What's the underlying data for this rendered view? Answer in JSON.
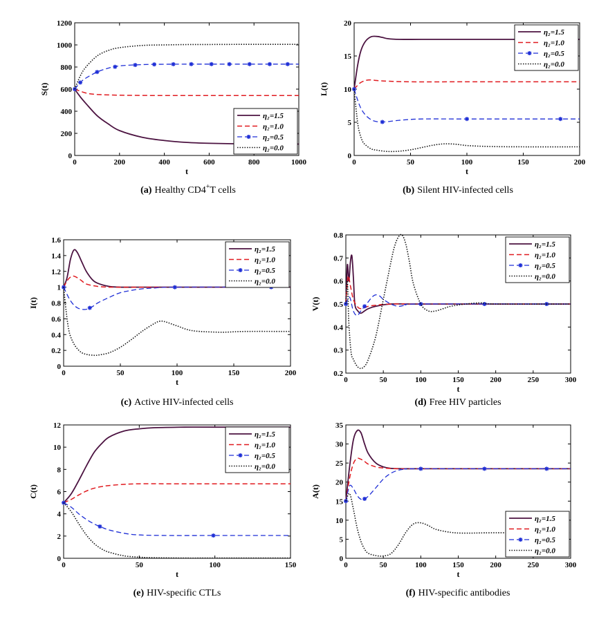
{
  "legend_labels": [
    "η₂=1.5",
    "η₂=1.0",
    "η₂=0.5",
    "η₂=0.0"
  ],
  "colors": {
    "s15": "#4b1240",
    "s10": "#e0191e",
    "s05": "#1f2fd6",
    "s00": "#111111"
  },
  "chart_data": [
    {
      "id": "a",
      "type": "line",
      "caption_label": "(a)",
      "caption_text": "Healthy CD4",
      "caption_sup": "+",
      "caption_tail": "T cells",
      "xlabel": "t",
      "ylabel": "S(t)",
      "xlim": [
        0,
        1000
      ],
      "ylim": [
        0,
        1200
      ],
      "xticks": [
        0,
        200,
        400,
        600,
        800,
        1000
      ],
      "yticks": [
        0,
        200,
        400,
        600,
        800,
        1000,
        1200
      ],
      "legend": "bottom-right",
      "series": [
        {
          "name": "η₂=1.5",
          "x": [
            0,
            25,
            50,
            100,
            150,
            200,
            300,
            400,
            500,
            600,
            700,
            800,
            900,
            1000
          ],
          "values": [
            600,
            530,
            470,
            360,
            285,
            225,
            165,
            135,
            118,
            110,
            106,
            104,
            103,
            103
          ]
        },
        {
          "name": "η₂=1.0",
          "x": [
            0,
            50,
            100,
            200,
            300,
            400,
            600,
            800,
            1000
          ],
          "values": [
            600,
            565,
            552,
            545,
            543,
            542,
            542,
            542,
            542
          ]
        },
        {
          "name": "η₂=0.5",
          "x": [
            0,
            25,
            50,
            100,
            150,
            200,
            300,
            400,
            500,
            600,
            800,
            1000
          ],
          "values": [
            600,
            660,
            700,
            755,
            790,
            810,
            822,
            825,
            826,
            826,
            826,
            826
          ],
          "markers_x": [
            0,
            25,
            100,
            180,
            270,
            355,
            440,
            520,
            610,
            690,
            780,
            870,
            950
          ]
        },
        {
          "name": "η₂=0.0",
          "x": [
            0,
            25,
            50,
            100,
            150,
            200,
            300,
            400,
            500,
            600,
            800,
            1000
          ],
          "values": [
            600,
            720,
            800,
            900,
            950,
            975,
            995,
            1000,
            1003,
            1004,
            1005,
            1005
          ]
        }
      ]
    },
    {
      "id": "b",
      "type": "line",
      "caption_label": "(b)",
      "caption_text": "Silent HIV-infected cells",
      "xlabel": "t",
      "ylabel": "L(t)",
      "xlim": [
        0,
        200
      ],
      "ylim": [
        0,
        20
      ],
      "xticks": [
        0,
        50,
        100,
        150,
        200
      ],
      "yticks": [
        0,
        5,
        10,
        15,
        20
      ],
      "legend": "top-right",
      "series": [
        {
          "name": "η₂=1.5",
          "x": [
            0,
            3,
            6,
            10,
            15,
            20,
            25,
            30,
            40,
            60,
            100,
            150,
            200
          ],
          "values": [
            10,
            13.5,
            15.8,
            17.2,
            17.9,
            17.95,
            17.8,
            17.6,
            17.5,
            17.5,
            17.5,
            17.5,
            17.5
          ]
        },
        {
          "name": "η₂=1.0",
          "x": [
            0,
            5,
            10,
            15,
            20,
            30,
            50,
            100,
            200
          ],
          "values": [
            10,
            10.9,
            11.3,
            11.4,
            11.3,
            11.2,
            11.1,
            11.1,
            11.1
          ]
        },
        {
          "name": "η₂=0.5",
          "x": [
            0,
            3,
            6,
            10,
            15,
            20,
            25,
            30,
            40,
            60,
            100,
            200
          ],
          "values": [
            10,
            8.4,
            7.1,
            6.1,
            5.4,
            5.1,
            5.05,
            5.1,
            5.3,
            5.5,
            5.5,
            5.5
          ],
          "markers_x": [
            0,
            25,
            100,
            183
          ]
        },
        {
          "name": "η₂=0.0",
          "x": [
            0,
            2,
            4,
            7,
            10,
            15,
            20,
            30,
            40,
            50,
            60,
            70,
            80,
            90,
            100,
            120,
            150,
            200
          ],
          "values": [
            10,
            6.5,
            4.0,
            2.3,
            1.6,
            1.0,
            0.8,
            0.6,
            0.65,
            0.85,
            1.2,
            1.55,
            1.75,
            1.7,
            1.5,
            1.35,
            1.3,
            1.3
          ]
        }
      ]
    },
    {
      "id": "c",
      "type": "line",
      "caption_label": "(c)",
      "caption_text": "Active HIV-infected cells",
      "xlabel": "t",
      "ylabel": "I(t)",
      "xlim": [
        0,
        200
      ],
      "ylim": [
        0,
        1.6
      ],
      "xticks": [
        0,
        50,
        100,
        150,
        200
      ],
      "yticks": [
        0,
        0.2,
        0.4,
        0.6,
        0.8,
        1,
        1.2,
        1.4,
        1.6
      ],
      "ytick_labels": [
        "0",
        "0.2",
        "0.4",
        "0.6",
        "0.8",
        "1",
        "1.2",
        "1.4",
        "1.6"
      ],
      "legend": "top-right",
      "series": [
        {
          "name": "η₂=1.5",
          "x": [
            0,
            3,
            6,
            9,
            12,
            16,
            20,
            25,
            30,
            40,
            50,
            70,
            100,
            200
          ],
          "values": [
            1,
            1.12,
            1.35,
            1.47,
            1.44,
            1.32,
            1.2,
            1.1,
            1.05,
            1.01,
            1.0,
            1.0,
            1.0,
            1.0
          ]
        },
        {
          "name": "η₂=1.0",
          "x": [
            0,
            4,
            8,
            12,
            16,
            20,
            30,
            40,
            50,
            100,
            200
          ],
          "values": [
            1,
            1.1,
            1.14,
            1.12,
            1.08,
            1.04,
            1.01,
            1.0,
            1.0,
            1.0,
            1.0
          ]
        },
        {
          "name": "η₂=0.5",
          "x": [
            0,
            4,
            8,
            12,
            16,
            20,
            25,
            30,
            40,
            50,
            60,
            70,
            80,
            100,
            200
          ],
          "values": [
            1,
            0.88,
            0.79,
            0.74,
            0.72,
            0.72,
            0.75,
            0.8,
            0.87,
            0.93,
            0.96,
            0.98,
            0.99,
            1.0,
            1.0
          ],
          "markers_x": [
            0,
            23,
            98,
            183
          ]
        },
        {
          "name": "η₂=0.0",
          "x": [
            0,
            2,
            4,
            6,
            10,
            15,
            20,
            25,
            30,
            40,
            50,
            60,
            70,
            80,
            85,
            90,
            100,
            110,
            120,
            140,
            160,
            200
          ],
          "values": [
            1,
            0.72,
            0.5,
            0.38,
            0.26,
            0.18,
            0.15,
            0.14,
            0.14,
            0.17,
            0.24,
            0.34,
            0.45,
            0.54,
            0.57,
            0.56,
            0.51,
            0.46,
            0.44,
            0.43,
            0.44,
            0.44
          ]
        }
      ]
    },
    {
      "id": "d",
      "type": "line",
      "caption_label": "(d)",
      "caption_text": "Free HIV particles",
      "xlabel": "t",
      "ylabel": "V(t)",
      "xlim": [
        0,
        300
      ],
      "ylim": [
        0.2,
        0.8
      ],
      "xticks": [
        0,
        50,
        100,
        150,
        200,
        250,
        300
      ],
      "yticks": [
        0.2,
        0.3,
        0.4,
        0.5,
        0.6,
        0.7,
        0.8
      ],
      "legend": "top-right",
      "series": [
        {
          "name": "η₂=1.5",
          "x": [
            0,
            2,
            4,
            6,
            8,
            10,
            12,
            16,
            20,
            25,
            30,
            40,
            60,
            100,
            300
          ],
          "values": [
            0.5,
            0.67,
            0.6,
            0.68,
            0.71,
            0.62,
            0.5,
            0.47,
            0.46,
            0.47,
            0.48,
            0.49,
            0.5,
            0.5,
            0.5
          ]
        },
        {
          "name": "η₂=1.0",
          "x": [
            0,
            3,
            6,
            10,
            15,
            20,
            30,
            40,
            60,
            100,
            300
          ],
          "values": [
            0.5,
            0.62,
            0.58,
            0.52,
            0.49,
            0.48,
            0.49,
            0.495,
            0.5,
            0.5,
            0.5
          ]
        },
        {
          "name": "η₂=0.5",
          "x": [
            0,
            5,
            10,
            15,
            20,
            25,
            30,
            35,
            40,
            45,
            50,
            60,
            70,
            80,
            100,
            300
          ],
          "values": [
            0.5,
            0.53,
            0.47,
            0.45,
            0.47,
            0.49,
            0.51,
            0.53,
            0.54,
            0.535,
            0.52,
            0.5,
            0.49,
            0.495,
            0.5,
            0.5
          ],
          "markers_x": [
            0,
            25,
            100,
            185,
            268
          ]
        },
        {
          "name": "η₂=0.0",
          "x": [
            0,
            2,
            4,
            7,
            10,
            15,
            20,
            25,
            30,
            40,
            50,
            60,
            65,
            70,
            75,
            80,
            85,
            90,
            100,
            110,
            120,
            130,
            140,
            160,
            180,
            200,
            300
          ],
          "values": [
            0.5,
            0.6,
            0.42,
            0.29,
            0.26,
            0.23,
            0.22,
            0.23,
            0.26,
            0.36,
            0.52,
            0.68,
            0.75,
            0.79,
            0.8,
            0.76,
            0.68,
            0.59,
            0.5,
            0.47,
            0.47,
            0.48,
            0.49,
            0.5,
            0.505,
            0.5,
            0.5
          ]
        }
      ]
    },
    {
      "id": "e",
      "type": "line",
      "caption_label": "(e)",
      "caption_text": "HIV-specific CTLs",
      "xlabel": "t",
      "ylabel": "C(t)",
      "xlim": [
        0,
        150
      ],
      "ylim": [
        0,
        12
      ],
      "xticks": [
        0,
        50,
        100,
        150
      ],
      "yticks": [
        0,
        2,
        4,
        6,
        8,
        10,
        12
      ],
      "legend": "top-right",
      "series": [
        {
          "name": "η₂=1.5",
          "x": [
            0,
            5,
            10,
            15,
            20,
            25,
            30,
            40,
            50,
            60,
            80,
            100,
            150
          ],
          "values": [
            5,
            5.8,
            7.0,
            8.3,
            9.5,
            10.3,
            10.9,
            11.45,
            11.65,
            11.75,
            11.8,
            11.8,
            11.8
          ]
        },
        {
          "name": "η₂=1.0",
          "x": [
            0,
            5,
            10,
            15,
            20,
            25,
            30,
            40,
            50,
            70,
            100,
            150
          ],
          "values": [
            5,
            5.3,
            5.7,
            6.05,
            6.3,
            6.45,
            6.55,
            6.65,
            6.7,
            6.7,
            6.7,
            6.7
          ]
        },
        {
          "name": "η₂=0.5",
          "x": [
            0,
            5,
            10,
            15,
            20,
            25,
            30,
            40,
            50,
            70,
            100,
            150
          ],
          "values": [
            5,
            4.6,
            4.0,
            3.5,
            3.1,
            2.8,
            2.55,
            2.25,
            2.1,
            2.05,
            2.05,
            2.05
          ],
          "markers_x": [
            0,
            24,
            99
          ]
        },
        {
          "name": "η₂=0.0",
          "x": [
            0,
            5,
            10,
            15,
            20,
            25,
            30,
            40,
            50,
            60,
            80,
            100,
            150
          ],
          "values": [
            5,
            4.2,
            3.1,
            2.1,
            1.35,
            0.85,
            0.55,
            0.22,
            0.1,
            0.05,
            0.02,
            0.02,
            0.02
          ]
        }
      ]
    },
    {
      "id": "f",
      "type": "line",
      "caption_label": "(f)",
      "caption_text": "HIV-specific antibodies",
      "xlabel": "t",
      "ylabel": "A(t)",
      "xlim": [
        0,
        300
      ],
      "ylim": [
        0,
        35
      ],
      "xticks": [
        0,
        50,
        100,
        150,
        200,
        250,
        300
      ],
      "yticks": [
        0,
        5,
        10,
        15,
        20,
        25,
        30,
        35
      ],
      "legend": "bottom-right",
      "series": [
        {
          "name": "η₂=1.5",
          "x": [
            0,
            5,
            10,
            15,
            20,
            25,
            30,
            40,
            50,
            60,
            80,
            100,
            300
          ],
          "values": [
            15,
            24,
            31,
            33.5,
            33,
            30,
            27.5,
            25,
            24,
            23.6,
            23.5,
            23.5,
            23.5
          ]
        },
        {
          "name": "η₂=1.0",
          "x": [
            0,
            5,
            10,
            15,
            20,
            25,
            30,
            40,
            50,
            70,
            100,
            300
          ],
          "values": [
            15,
            21,
            24.8,
            26.2,
            26,
            25.4,
            24.7,
            24,
            23.7,
            23.5,
            23.5,
            23.5
          ]
        },
        {
          "name": "η₂=0.5",
          "x": [
            0,
            5,
            10,
            15,
            20,
            25,
            30,
            40,
            50,
            60,
            70,
            80,
            100,
            300
          ],
          "values": [
            15,
            19,
            18.3,
            16.5,
            15.5,
            15.6,
            16.3,
            18.5,
            20.8,
            22.3,
            23.1,
            23.4,
            23.5,
            23.5
          ],
          "markers_x": [
            0,
            25,
            100,
            185,
            268
          ]
        },
        {
          "name": "η₂=0.0",
          "x": [
            0,
            5,
            10,
            15,
            20,
            25,
            30,
            40,
            50,
            60,
            70,
            80,
            90,
            100,
            110,
            120,
            140,
            160,
            200,
            300
          ],
          "values": [
            15,
            17,
            13,
            8,
            4.5,
            2.4,
            1.3,
            0.7,
            0.6,
            1.2,
            3.5,
            6.8,
            9.0,
            9.3,
            8.6,
            7.6,
            6.8,
            6.6,
            6.7,
            6.7
          ]
        }
      ]
    }
  ]
}
